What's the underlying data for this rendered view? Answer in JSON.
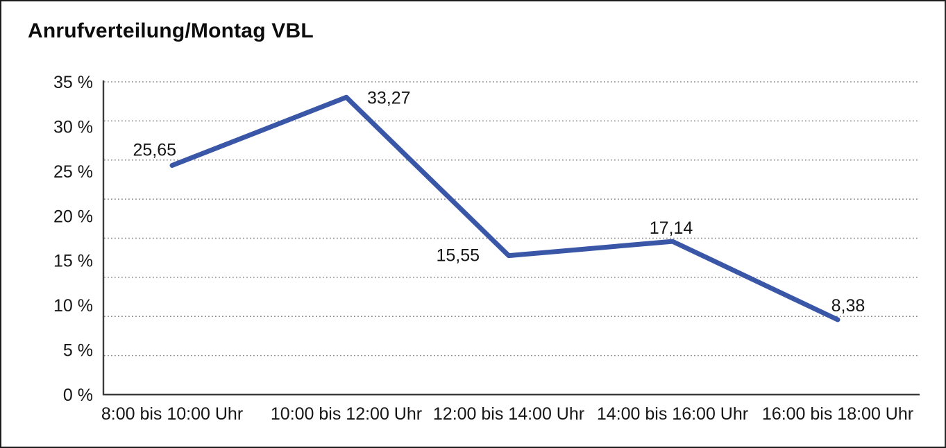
{
  "window": {
    "background_color": "#ffffff",
    "border_color": "#1c1c1c"
  },
  "chart_data": {
    "type": "line",
    "title": "Anrufverteilung/Montag VBL",
    "categories": [
      "8:00 bis 10:00 Uhr",
      "10:00 bis 12:00 Uhr",
      "12:00 bis 14:00 Uhr",
      "14:00 bis 16:00 Uhr",
      "16:00 bis 18:00 Uhr"
    ],
    "series": [
      {
        "name": "Anrufverteilung Montag VBL",
        "values": [
          25.65,
          33.27,
          15.55,
          17.14,
          8.38
        ],
        "value_labels": [
          "25,65",
          "33,27",
          "15,55",
          "17,14",
          "8,38"
        ],
        "color": "#3A57A7"
      }
    ],
    "xlabel": "",
    "ylabel": "",
    "ylim": [
      0,
      35
    ],
    "y_tick_labels": [
      "35 %",
      "30 %",
      "25 %",
      "20 %",
      "15 %",
      "10 %",
      "5 %",
      "0 %"
    ],
    "y_tick_values": [
      35,
      30,
      25,
      20,
      15,
      10,
      5,
      0
    ],
    "grid": "dotted-horizontal",
    "grid_color": "#8a8a8a",
    "gridline_divisions": 8,
    "axis_color": "#3c3c3c",
    "text_color": "#161616",
    "legend": "none",
    "value_decimal_separator": ","
  }
}
